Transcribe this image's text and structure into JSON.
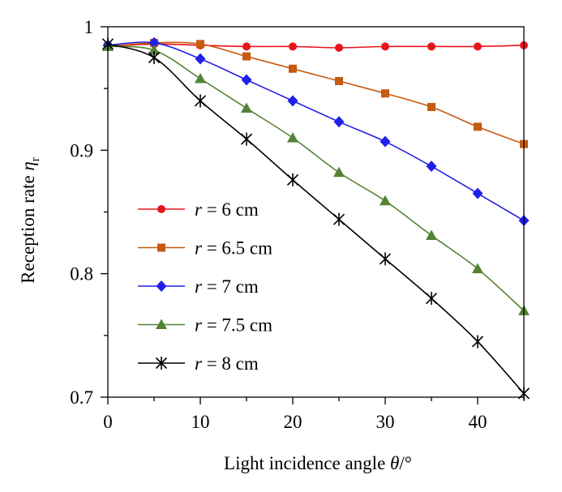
{
  "chart_data": {
    "type": "line",
    "xlabel": "Light incidence angle θ/°",
    "xlabel_parts": {
      "pre": "Light incidence angle ",
      "sym": "θ",
      "post": "/°"
    },
    "ylabel": "Reception rate η_r",
    "ylabel_parts": {
      "pre": "Reception rate ",
      "sym": "η",
      "sub": "r"
    },
    "xlim": [
      0,
      45
    ],
    "ylim": [
      0.7,
      1.0
    ],
    "xticks": [
      0,
      10,
      20,
      30,
      40
    ],
    "xtick_labels": [
      "0",
      "10",
      "20",
      "30",
      "40"
    ],
    "yticks": [
      0.7,
      0.8,
      0.9,
      1.0
    ],
    "ytick_labels": [
      "0.7",
      "0.8",
      "0.9",
      "1"
    ],
    "grid": false,
    "legend_position": "left-center",
    "x": [
      0,
      5,
      10,
      15,
      20,
      25,
      30,
      35,
      40,
      45
    ],
    "series": [
      {
        "name": "r = 6 cm",
        "label_var": "r",
        "label_rest": " = 6 cm",
        "color": "#e8141b",
        "marker": "circle",
        "values": [
          0.984,
          0.986,
          0.985,
          0.984,
          0.984,
          0.983,
          0.984,
          0.984,
          0.984,
          0.985
        ]
      },
      {
        "name": "r = 6.5 cm",
        "label_var": "r",
        "label_rest": " = 6.5 cm",
        "color": "#c55a11",
        "marker": "square",
        "values": [
          0.984,
          0.987,
          0.986,
          0.976,
          0.966,
          0.956,
          0.946,
          0.935,
          0.919,
          0.905
        ]
      },
      {
        "name": "r = 7 cm",
        "label_var": "r",
        "label_rest": " = 7 cm",
        "color": "#2020e8",
        "marker": "diamond",
        "values": [
          0.985,
          0.987,
          0.974,
          0.957,
          0.94,
          0.923,
          0.907,
          0.887,
          0.865,
          0.843
        ]
      },
      {
        "name": "r = 7.5 cm",
        "label_var": "r",
        "label_rest": " = 7.5 cm",
        "color": "#548235",
        "marker": "triangle",
        "values": [
          0.984,
          0.981,
          0.958,
          0.934,
          0.91,
          0.882,
          0.859,
          0.831,
          0.804,
          0.77
        ]
      },
      {
        "name": "r = 8 cm",
        "label_var": "r",
        "label_rest": " = 8 cm",
        "color": "#000000",
        "marker": "star",
        "values": [
          0.986,
          0.975,
          0.94,
          0.909,
          0.876,
          0.844,
          0.812,
          0.78,
          0.745,
          0.703
        ]
      }
    ]
  }
}
